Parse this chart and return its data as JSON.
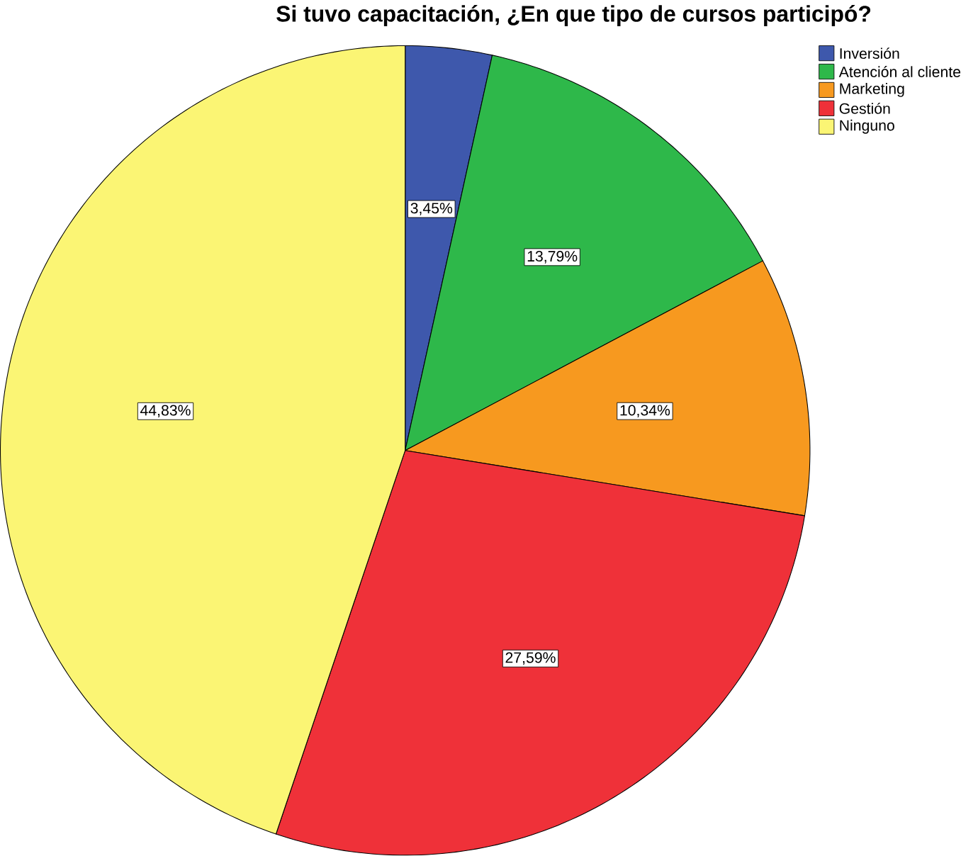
{
  "chart_data": {
    "type": "pie",
    "title": "Si tuvo capacitación, ¿En que tipo de cursos participó?",
    "categories": [
      "Inversión",
      "Atención al cliente",
      "Marketing",
      "Gestión",
      "Ninguno"
    ],
    "values": [
      3.45,
      13.79,
      10.34,
      27.59,
      44.83
    ],
    "colors": [
      "#3e58ac",
      "#2eb84a",
      "#f7991f",
      "#ef3139",
      "#fbf574"
    ],
    "value_labels": [
      "3,45%",
      "13,79%",
      "10,34%",
      "27,59%",
      "44,83%"
    ],
    "legend": "top right"
  }
}
